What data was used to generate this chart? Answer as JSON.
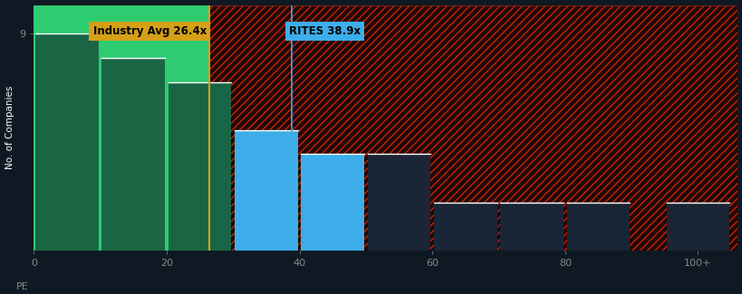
{
  "background_color": "#0f1923",
  "plot_bg_color": "#0f1923",
  "xlabel": "PE",
  "ylabel": "No. of Companies",
  "industry_avg": 26.4,
  "rites_pe": 38.9,
  "bar_centers": [
    5,
    15,
    25,
    35,
    45,
    55,
    65,
    75,
    85,
    100
  ],
  "bar_values": [
    9,
    8,
    7,
    5,
    4,
    4,
    2,
    2,
    2,
    2
  ],
  "bar_width": 9.5,
  "green_fill": "#2ecc71",
  "dark_green": "#1a6644",
  "blue_color": "#3daee9",
  "dark_bar_color": "#1a2535",
  "hatch_fg": "#cc2200",
  "hatch_bg": "#200808",
  "annotation_industry_color": "#d4a017",
  "annotation_rites_color": "#3daee9",
  "tick_color": "#888888",
  "ylabel_color": "#ffffff",
  "xlim": [
    0,
    106
  ],
  "ylim": [
    0,
    10.2
  ],
  "xticks": [
    0,
    20,
    40,
    60,
    80,
    100
  ],
  "xticklabels": [
    "0",
    "20",
    "40",
    "60",
    "80",
    "100+"
  ],
  "ytick_val": 9,
  "ytick_label": "9"
}
